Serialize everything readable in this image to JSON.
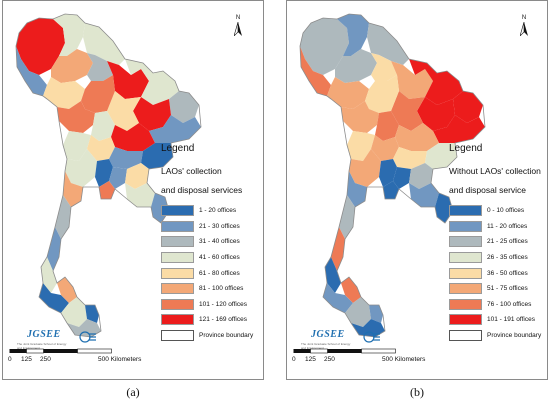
{
  "panels": [
    {
      "caption": "(a)",
      "north_label": "N",
      "legend_title": "Legend",
      "legend_sub1": "LAOs' collection",
      "legend_sub2": "and disposal services",
      "classes": [
        {
          "label": "1 - 20 offices",
          "color": "#2b6cb0"
        },
        {
          "label": "21 - 30 offices",
          "color": "#7197c1"
        },
        {
          "label": "31 - 40 offices",
          "color": "#aeb9bd"
        },
        {
          "label": "41 - 60 offices",
          "color": "#dfe6cf"
        },
        {
          "label": "61 - 80 offices",
          "color": "#fbdca6"
        },
        {
          "label": "81 - 100 offices",
          "color": "#f3a877"
        },
        {
          "label": "101 - 120 offices",
          "color": "#ee7a55"
        },
        {
          "label": "121 - 169 offices",
          "color": "#ec1c1c"
        }
      ],
      "boundary_label": "Province boundary",
      "logo": "JGSEE",
      "logo_subtitle": "The Joint Graduate School of Energy and Environment",
      "scale_ticks": [
        "0",
        "125",
        "250",
        "500 Kilometers"
      ]
    },
    {
      "caption": "(b)",
      "north_label": "N",
      "legend_title": "Legend",
      "legend_sub1": "Without LAOs' collection",
      "legend_sub2": "and disposal service",
      "classes": [
        {
          "label": "0 - 10 offices",
          "color": "#2b6cb0"
        },
        {
          "label": "11 - 20 offices",
          "color": "#7197c1"
        },
        {
          "label": "21 - 25 offices",
          "color": "#aeb9bd"
        },
        {
          "label": "26 - 35 offices",
          "color": "#dfe6cf"
        },
        {
          "label": "36 - 50 offices",
          "color": "#fbdca6"
        },
        {
          "label": "51 - 75 offices",
          "color": "#f3a877"
        },
        {
          "label": "76 - 100 offices",
          "color": "#ee7a55"
        },
        {
          "label": "101 - 191 offices",
          "color": "#ec1c1c"
        }
      ],
      "boundary_label": "Province boundary",
      "logo": "JGSEE",
      "logo_subtitle": "The Joint Graduate School of Energy and Environment",
      "scale_ticks": [
        "0",
        "125",
        "250",
        "500 Kilometers"
      ]
    }
  ],
  "boundary_color": "#ffffff",
  "map_outline_color": "#8c8c8c"
}
